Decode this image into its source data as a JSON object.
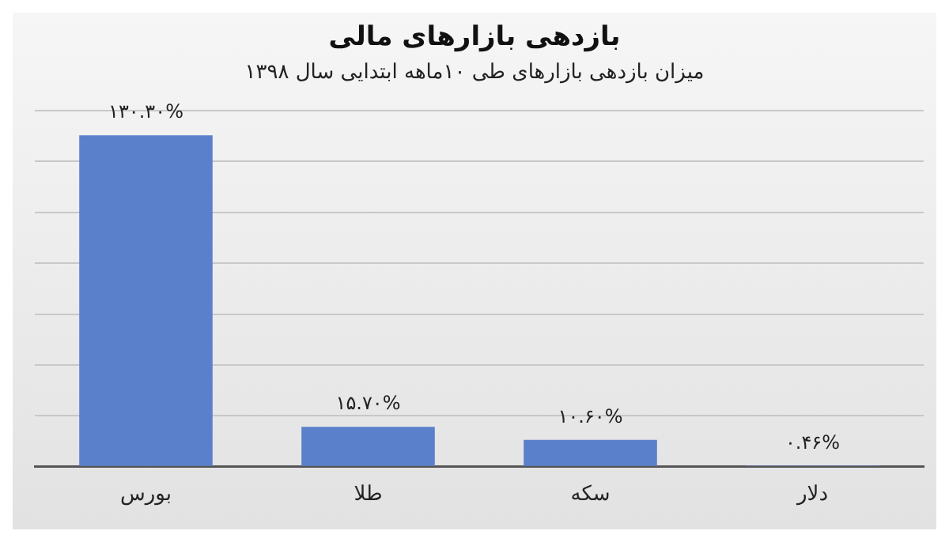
{
  "chart_data": {
    "type": "bar",
    "title": "بازدهی بازارهای مالی",
    "subtitle": "میزان بازدهی بازارهای طی ۱۰ماهه ابتدایی سال ۱۳۹۸",
    "categories": [
      "بورس",
      "طلا",
      "سکه",
      "دلار"
    ],
    "values": [
      130.3,
      15.7,
      10.6,
      0.46
    ],
    "value_labels": [
      "۱۳۰.۳۰%",
      "۱۵.۷۰%",
      "۱۰.۶۰%",
      "۰.۴۶%"
    ],
    "color": "#5b80cb",
    "ylim": [
      0,
      140
    ],
    "yticks": [
      {
        "value": 0,
        "label": null
      },
      {
        "value": 20,
        "label": null
      },
      {
        "value": 40,
        "label": null
      },
      {
        "value": 60,
        "label": null
      },
      {
        "value": 80,
        "label": null
      },
      {
        "value": 100,
        "label": null
      },
      {
        "value": 120,
        "label": null
      },
      {
        "value": 140,
        "label": null
      }
    ],
    "grid": "y",
    "legend": false
  }
}
